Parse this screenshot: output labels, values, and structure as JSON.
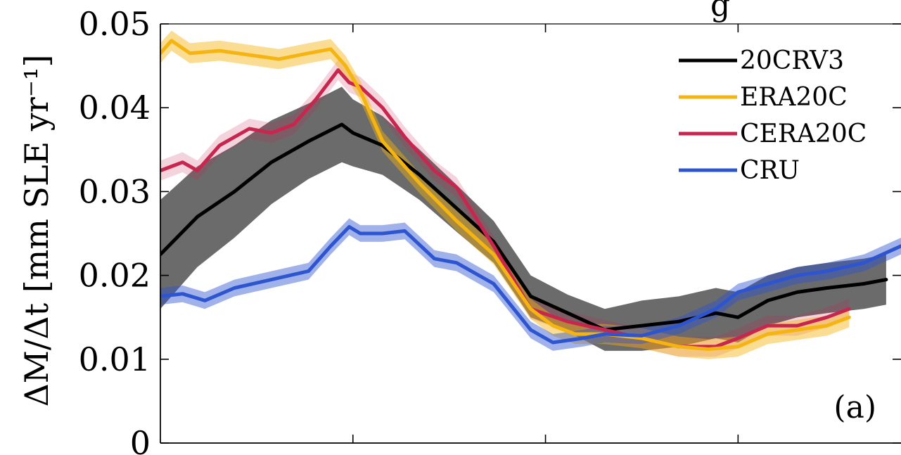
{
  "title_fragment": "g",
  "chart_data": {
    "type": "line",
    "ylabel": "ΔM/Δt [mm SLE yr⁻¹]",
    "ylim": [
      0,
      0.05
    ],
    "yticks": [
      0,
      0.01,
      0.02,
      0.03,
      0.04,
      0.05
    ],
    "ytick_labels": [
      "0",
      "0.01",
      "0.02",
      "0.03",
      "0.04",
      "0.05"
    ],
    "xlim": [
      0,
      1
    ],
    "xticks": [
      0.26,
      0.52,
      0.78
    ],
    "panel_label": "(a)",
    "legend_position": "top-right",
    "legend": [
      {
        "label": "20CRV3",
        "color": "#000000"
      },
      {
        "label": "ERA20C",
        "color": "#F5B40F"
      },
      {
        "label": "CERA20C",
        "color": "#C8264E"
      },
      {
        "label": "CRU",
        "color": "#2E55D0"
      }
    ],
    "series": [
      {
        "name": "20CRV3",
        "color": "#000000",
        "band_color": "#6b6b6b",
        "x": [
          0.0,
          0.05,
          0.1,
          0.15,
          0.2,
          0.245,
          0.26,
          0.3,
          0.35,
          0.4,
          0.45,
          0.5,
          0.55,
          0.6,
          0.65,
          0.7,
          0.75,
          0.78,
          0.82,
          0.86,
          0.9,
          0.95,
          0.98
        ],
        "y": [
          0.0225,
          0.027,
          0.03,
          0.0335,
          0.036,
          0.038,
          0.037,
          0.0355,
          0.032,
          0.028,
          0.024,
          0.0175,
          0.0155,
          0.0135,
          0.014,
          0.0145,
          0.0155,
          0.015,
          0.017,
          0.018,
          0.0185,
          0.019,
          0.0195
        ],
        "band": [
          0.0065,
          0.006,
          0.0055,
          0.005,
          0.0045,
          0.0045,
          0.004,
          0.0035,
          0.003,
          0.0028,
          0.0025,
          0.0025,
          0.0022,
          0.0025,
          0.003,
          0.003,
          0.003,
          0.003,
          0.003,
          0.003,
          0.003,
          0.003,
          0.003
        ]
      },
      {
        "name": "ERA20C",
        "color": "#F5B40F",
        "band_color": "#F5B40F",
        "x": [
          0.0,
          0.015,
          0.04,
          0.08,
          0.12,
          0.16,
          0.2,
          0.23,
          0.25,
          0.27,
          0.3,
          0.35,
          0.4,
          0.45,
          0.5,
          0.53,
          0.56,
          0.6,
          0.65,
          0.7,
          0.74,
          0.78,
          0.82,
          0.86,
          0.9,
          0.93
        ],
        "y": [
          0.0465,
          0.048,
          0.0465,
          0.0468,
          0.0463,
          0.0458,
          0.0465,
          0.047,
          0.045,
          0.042,
          0.036,
          0.031,
          0.0265,
          0.0225,
          0.016,
          0.014,
          0.013,
          0.013,
          0.0125,
          0.0115,
          0.0112,
          0.0115,
          0.013,
          0.0135,
          0.014,
          0.015
        ],
        "band": 0.0012
      },
      {
        "name": "CERA20C",
        "color": "#C8264E",
        "band_color": "#C8264E",
        "x": [
          0.0,
          0.03,
          0.05,
          0.08,
          0.12,
          0.15,
          0.18,
          0.21,
          0.24,
          0.255,
          0.27,
          0.3,
          0.33,
          0.37,
          0.4,
          0.45,
          0.5,
          0.55,
          0.6,
          0.65,
          0.7,
          0.75,
          0.78,
          0.82,
          0.86,
          0.9,
          0.93
        ],
        "y": [
          0.0325,
          0.0335,
          0.0325,
          0.0355,
          0.0375,
          0.037,
          0.038,
          0.041,
          0.0445,
          0.043,
          0.0425,
          0.04,
          0.0365,
          0.0325,
          0.0305,
          0.0235,
          0.016,
          0.0145,
          0.0135,
          0.0125,
          0.0115,
          0.0115,
          0.0125,
          0.014,
          0.014,
          0.015,
          0.016
        ],
        "band": 0.0012
      },
      {
        "name": "CRU",
        "color": "#2E55D0",
        "band_color": "#2E55D0",
        "x": [
          0.0,
          0.03,
          0.06,
          0.1,
          0.15,
          0.2,
          0.23,
          0.255,
          0.27,
          0.3,
          0.33,
          0.37,
          0.4,
          0.45,
          0.5,
          0.53,
          0.57,
          0.6,
          0.65,
          0.7,
          0.75,
          0.78,
          0.82,
          0.86,
          0.9,
          0.95,
          1.0
        ],
        "y": [
          0.0175,
          0.0178,
          0.017,
          0.0185,
          0.0195,
          0.0205,
          0.0235,
          0.0258,
          0.025,
          0.025,
          0.0253,
          0.022,
          0.0215,
          0.019,
          0.0135,
          0.012,
          0.0125,
          0.013,
          0.0128,
          0.014,
          0.016,
          0.018,
          0.019,
          0.02,
          0.0205,
          0.0215,
          0.0235
        ],
        "band": 0.001
      }
    ]
  }
}
